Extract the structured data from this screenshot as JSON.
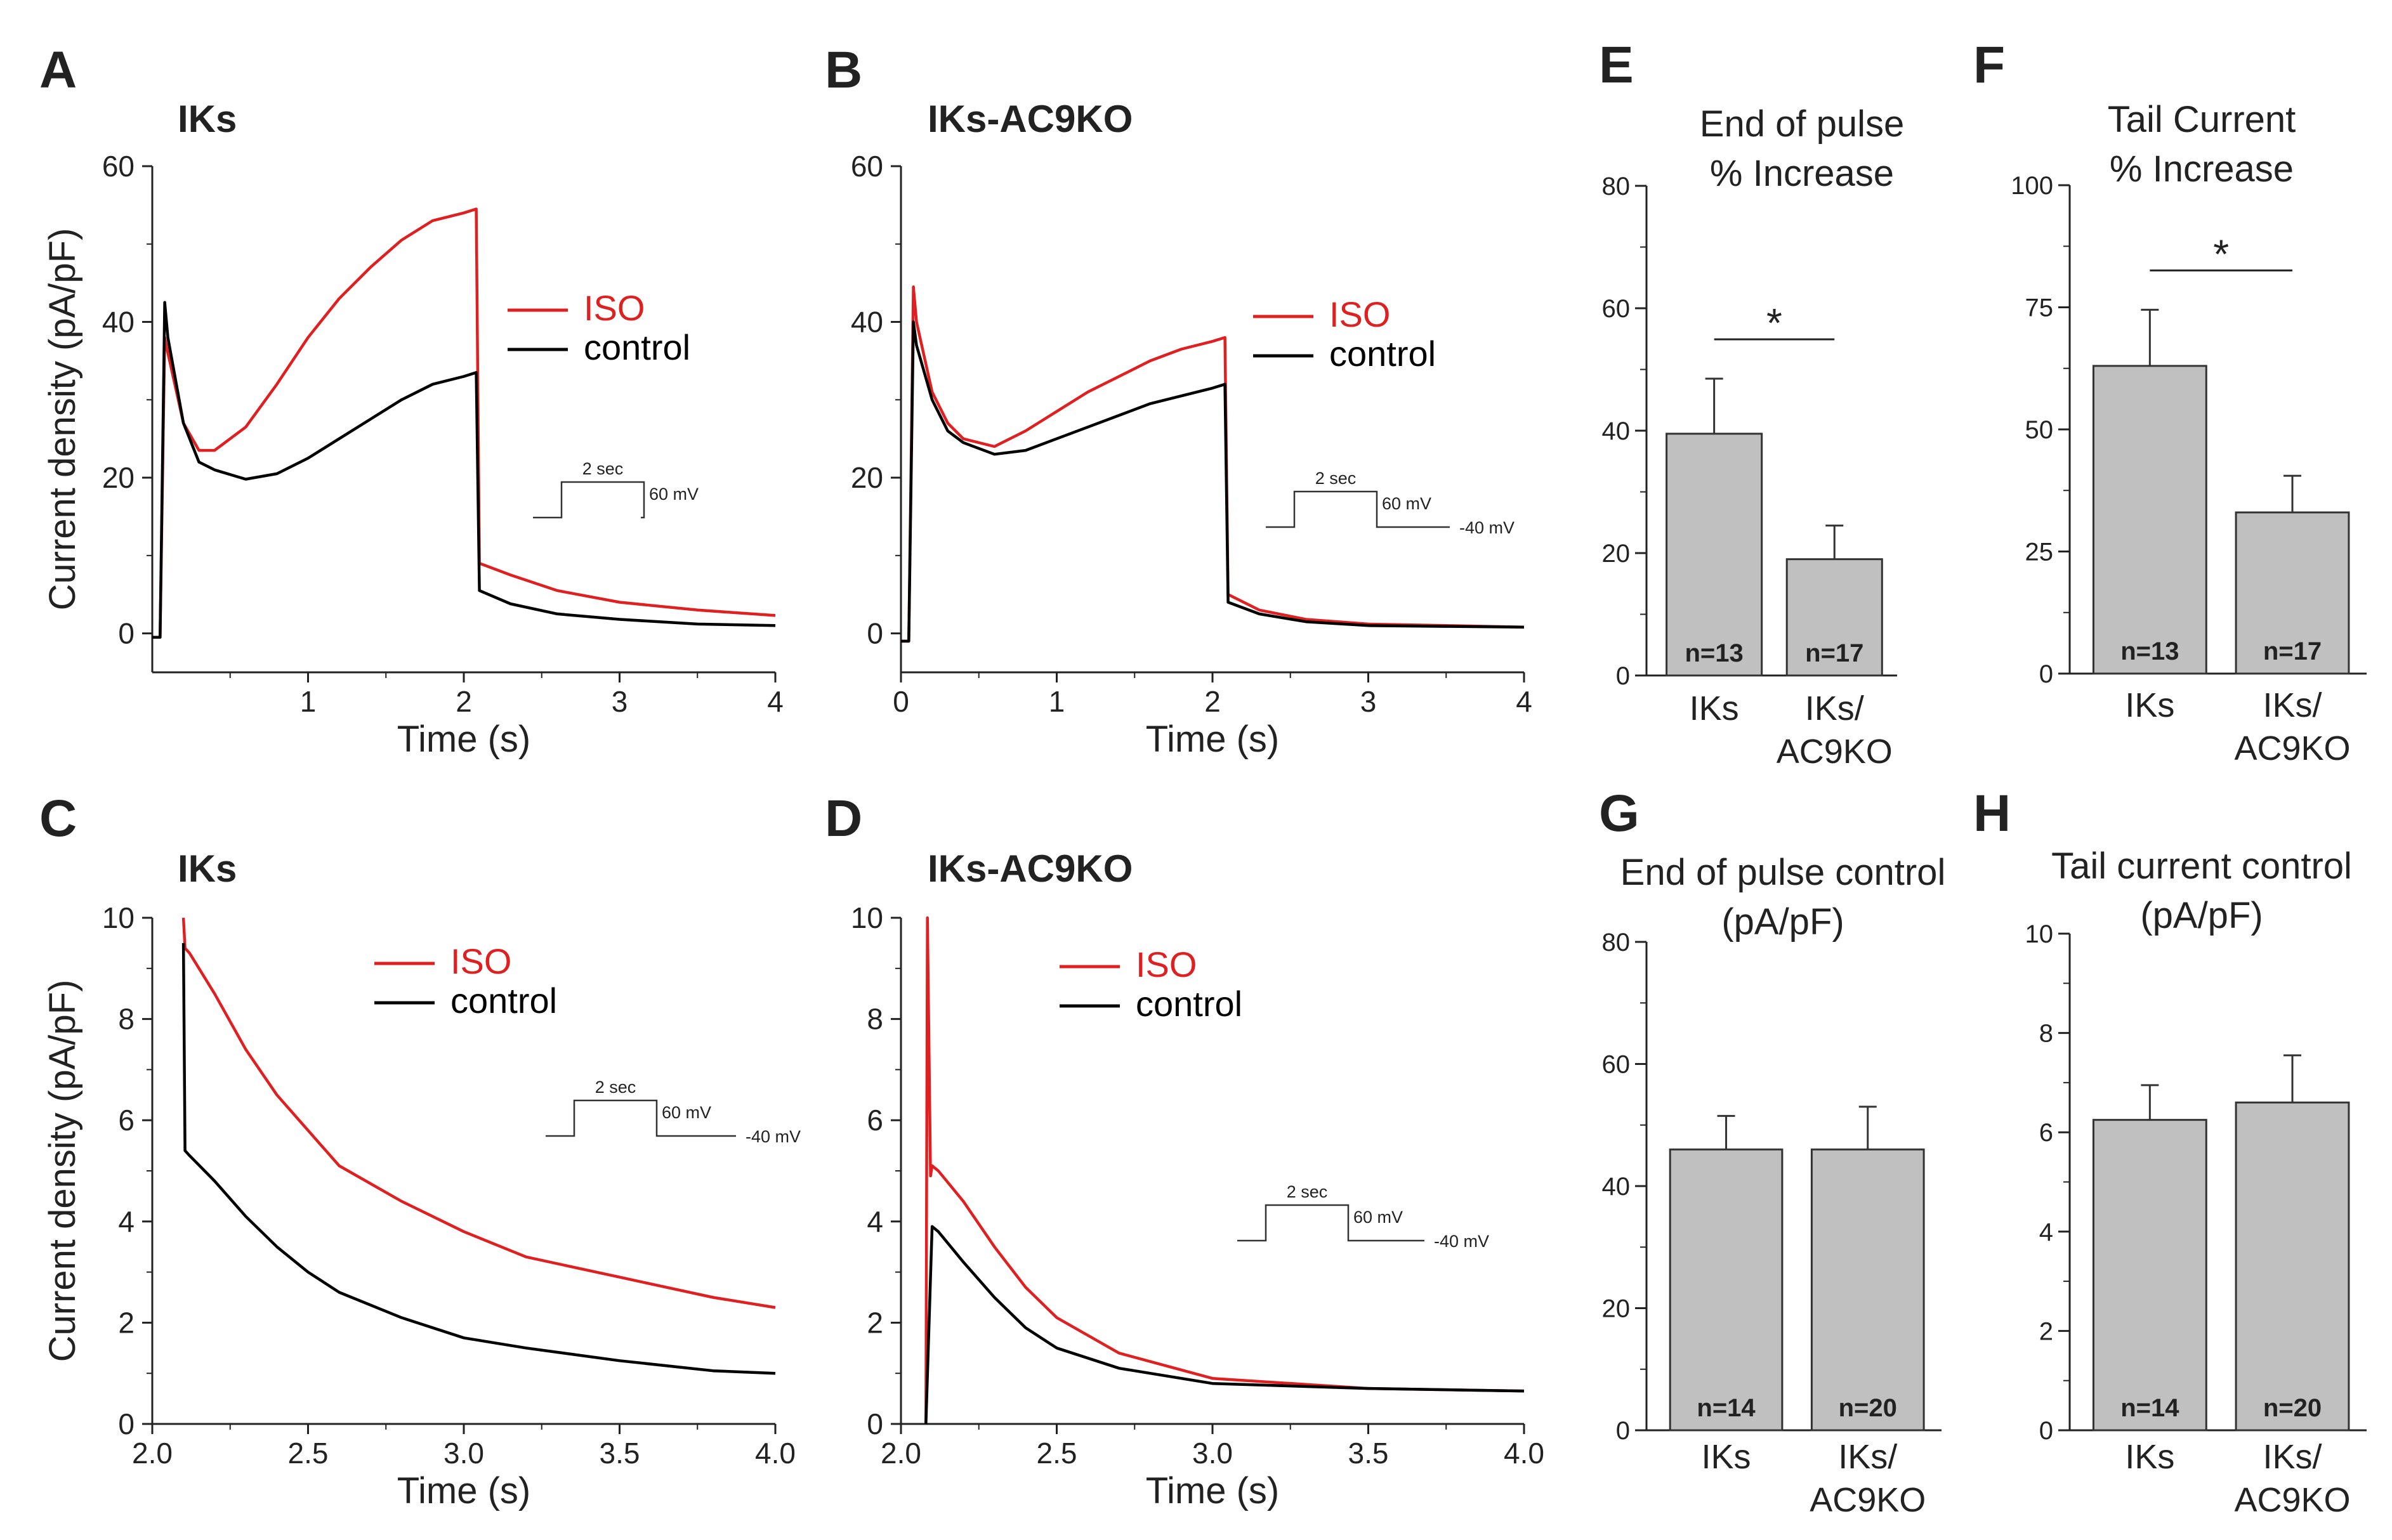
{
  "figure": {
    "panel_labels": [
      "A",
      "B",
      "C",
      "D",
      "E",
      "F",
      "G",
      "H"
    ],
    "colors": {
      "iso": "#e02020",
      "control": "#000000",
      "bar_fill": "#c0c0c0",
      "bar_edge": "#333333",
      "axis": "#222222"
    }
  },
  "chart_data": [
    {
      "id": "A",
      "type": "line",
      "title": "IKs",
      "xlabel": "Time (s)",
      "ylabel": "Current density (pA/pF)",
      "xlim": [
        0,
        4
      ],
      "ylim": [
        -5,
        60
      ],
      "xticks": [
        "1",
        "2",
        "3",
        "4"
      ],
      "xtick_values": [
        1,
        2,
        3,
        4
      ],
      "yticks": [
        "0",
        "20",
        "40",
        "60"
      ],
      "ytick_values": [
        0,
        20,
        40,
        60
      ],
      "legend": [
        "ISO",
        "control"
      ],
      "protocol": {
        "duration": "2 sec",
        "step": "60 mV",
        "holding": ""
      },
      "series": [
        {
          "name": "ISO",
          "x": [
            0.0,
            0.05,
            0.08,
            0.1,
            0.2,
            0.3,
            0.4,
            0.6,
            0.8,
            1.0,
            1.2,
            1.4,
            1.6,
            1.8,
            2.0,
            2.08,
            2.1,
            2.3,
            2.6,
            3.0,
            3.5,
            4.0
          ],
          "y": [
            -0.5,
            -0.5,
            38,
            36,
            27,
            23.5,
            23.5,
            26.5,
            32,
            38,
            43,
            47,
            50.5,
            53,
            54,
            54.5,
            9,
            7.5,
            5.5,
            4,
            3,
            2.3
          ]
        },
        {
          "name": "control",
          "x": [
            0.0,
            0.05,
            0.08,
            0.1,
            0.2,
            0.3,
            0.4,
            0.6,
            0.8,
            1.0,
            1.2,
            1.4,
            1.6,
            1.8,
            2.0,
            2.08,
            2.1,
            2.3,
            2.6,
            3.0,
            3.5,
            4.0
          ],
          "y": [
            -0.5,
            -0.5,
            42.5,
            38,
            27,
            22,
            21,
            19.8,
            20.5,
            22.5,
            25,
            27.5,
            30,
            32,
            33,
            33.5,
            5.5,
            3.8,
            2.5,
            1.8,
            1.2,
            1
          ]
        }
      ]
    },
    {
      "id": "B",
      "type": "line",
      "title": "IKs-AC9KO",
      "xlabel": "Time (s)",
      "ylabel": "",
      "xlim": [
        0,
        4
      ],
      "ylim": [
        -5,
        60
      ],
      "xticks": [
        "0",
        "1",
        "2",
        "3",
        "4"
      ],
      "xtick_values": [
        0,
        1,
        2,
        3,
        4
      ],
      "yticks": [
        "0",
        "20",
        "40",
        "60"
      ],
      "ytick_values": [
        0,
        20,
        40,
        60
      ],
      "legend": [
        "ISO",
        "control"
      ],
      "protocol": {
        "duration": "2 sec",
        "step": "60 mV",
        "holding": "-40 mV"
      },
      "series": [
        {
          "name": "ISO",
          "x": [
            0.0,
            0.05,
            0.08,
            0.1,
            0.2,
            0.3,
            0.4,
            0.6,
            0.8,
            1.0,
            1.2,
            1.4,
            1.6,
            1.8,
            2.0,
            2.08,
            2.1,
            2.3,
            2.6,
            3.0,
            3.5,
            4.0
          ],
          "y": [
            -1,
            -1,
            44.5,
            40,
            31,
            27,
            25,
            24,
            26,
            28.5,
            31,
            33,
            35,
            36.5,
            37.5,
            38,
            5,
            3,
            1.8,
            1.2,
            1,
            0.8
          ]
        },
        {
          "name": "control",
          "x": [
            0.0,
            0.05,
            0.08,
            0.1,
            0.2,
            0.3,
            0.4,
            0.6,
            0.8,
            1.0,
            1.2,
            1.4,
            1.6,
            1.8,
            2.0,
            2.08,
            2.1,
            2.3,
            2.6,
            3.0,
            3.5,
            4.0
          ],
          "y": [
            -1,
            -1,
            40,
            37,
            30,
            26,
            24.5,
            23,
            23.5,
            25,
            26.5,
            28,
            29.5,
            30.5,
            31.5,
            32,
            4,
            2.5,
            1.5,
            1,
            0.9,
            0.8
          ]
        }
      ]
    },
    {
      "id": "C",
      "type": "line",
      "title": "IKs",
      "xlabel": "Time (s)",
      "ylabel": "Current density (pA/pF)",
      "xlim": [
        2.0,
        4.0
      ],
      "ylim": [
        0,
        10
      ],
      "xticks": [
        "2.0",
        "2.5",
        "3.0",
        "3.5",
        "4.0"
      ],
      "xtick_values": [
        2.0,
        2.5,
        3.0,
        3.5,
        4.0
      ],
      "yticks": [
        "0",
        "2",
        "4",
        "6",
        "8",
        "10"
      ],
      "ytick_values": [
        0,
        2,
        4,
        6,
        8,
        10
      ],
      "legend": [
        "ISO",
        "control"
      ],
      "protocol": {
        "duration": "2 sec",
        "step": "60 mV",
        "holding": "-40 mV"
      },
      "series": [
        {
          "name": "ISO",
          "x": [
            2.1,
            2.105,
            2.12,
            2.2,
            2.3,
            2.4,
            2.5,
            2.6,
            2.8,
            3.0,
            3.2,
            3.5,
            3.8,
            4.0
          ],
          "y": [
            10,
            9.4,
            9.3,
            8.5,
            7.4,
            6.5,
            5.8,
            5.1,
            4.4,
            3.8,
            3.3,
            2.9,
            2.5,
            2.3
          ]
        },
        {
          "name": "control",
          "x": [
            2.1,
            2.105,
            2.12,
            2.2,
            2.3,
            2.4,
            2.5,
            2.6,
            2.8,
            3.0,
            3.2,
            3.5,
            3.8,
            4.0
          ],
          "y": [
            9.5,
            5.4,
            5.3,
            4.8,
            4.1,
            3.5,
            3.0,
            2.6,
            2.1,
            1.7,
            1.5,
            1.25,
            1.05,
            1.0
          ]
        }
      ]
    },
    {
      "id": "D",
      "type": "line",
      "title": "IKs-AC9KO",
      "xlabel": "Time (s)",
      "ylabel": "",
      "xlim": [
        2.0,
        4.0
      ],
      "ylim": [
        0,
        10
      ],
      "xticks": [
        "2.0",
        "2.5",
        "3.0",
        "3.5",
        "4.0"
      ],
      "xtick_values": [
        2.0,
        2.5,
        3.0,
        3.5,
        4.0
      ],
      "yticks": [
        "0",
        "2",
        "4",
        "6",
        "8",
        "10"
      ],
      "ytick_values": [
        0,
        2,
        4,
        6,
        8,
        10
      ],
      "legend": [
        "ISO",
        "control"
      ],
      "protocol": {
        "duration": "2 sec",
        "step": "60 mV",
        "holding": "-40 mV"
      },
      "series": [
        {
          "name": "ISO",
          "x": [
            2.08,
            2.085,
            2.095,
            2.1,
            2.12,
            2.2,
            2.3,
            2.4,
            2.5,
            2.7,
            3.0,
            3.5,
            4.0
          ],
          "y": [
            0,
            10,
            4.9,
            5.1,
            5.0,
            4.4,
            3.5,
            2.7,
            2.1,
            1.4,
            0.9,
            0.7,
            0.65
          ]
        },
        {
          "name": "control",
          "x": [
            2.08,
            2.1,
            2.12,
            2.2,
            2.3,
            2.4,
            2.5,
            2.7,
            3.0,
            3.5,
            4.0
          ],
          "y": [
            0,
            3.9,
            3.8,
            3.2,
            2.5,
            1.9,
            1.5,
            1.1,
            0.8,
            0.7,
            0.65
          ]
        }
      ]
    },
    {
      "id": "E",
      "type": "bar",
      "title": [
        "End of pulse",
        "% Increase"
      ],
      "ylim": [
        0,
        80
      ],
      "yticks": [
        "0",
        "20",
        "40",
        "60",
        "80"
      ],
      "ytick_values": [
        0,
        20,
        40,
        60,
        80
      ],
      "categories": [
        [
          "IKs"
        ],
        [
          "IKs/",
          "AC9KO"
        ]
      ],
      "values": [
        39.5,
        19
      ],
      "errors": [
        9,
        5.5
      ],
      "n_labels": [
        "n=13",
        "n=17"
      ],
      "significance": "*"
    },
    {
      "id": "F",
      "type": "bar",
      "title": [
        "Tail Current",
        "% Increase"
      ],
      "ylim": [
        0,
        100
      ],
      "yticks": [
        "0",
        "25",
        "50",
        "75",
        "100"
      ],
      "ytick_values": [
        0,
        25,
        50,
        75,
        100
      ],
      "categories": [
        [
          "IKs"
        ],
        [
          "IKs/",
          "AC9KO"
        ]
      ],
      "values": [
        63,
        33
      ],
      "errors": [
        11.5,
        7.5
      ],
      "n_labels": [
        "n=13",
        "n=17"
      ],
      "significance": "*"
    },
    {
      "id": "G",
      "type": "bar",
      "title": [
        "End of pulse control",
        "(pA/pF)"
      ],
      "ylim": [
        0,
        80
      ],
      "yticks": [
        "0",
        "20",
        "40",
        "60",
        "80"
      ],
      "ytick_values": [
        0,
        20,
        40,
        60,
        80
      ],
      "categories": [
        [
          "IKs"
        ],
        [
          "IKs/",
          "AC9KO"
        ]
      ],
      "values": [
        46,
        46
      ],
      "errors": [
        5.5,
        7
      ],
      "n_labels": [
        "n=14",
        "n=20"
      ],
      "significance": ""
    },
    {
      "id": "H",
      "type": "bar",
      "title": [
        "Tail current control",
        "(pA/pF)"
      ],
      "ylim": [
        0,
        10
      ],
      "yticks": [
        "0",
        "2",
        "4",
        "6",
        "8",
        "10"
      ],
      "ytick_values": [
        0,
        2,
        4,
        6,
        8,
        10
      ],
      "categories": [
        [
          "IKs"
        ],
        [
          "IKs/",
          "AC9KO"
        ]
      ],
      "values": [
        6.25,
        6.6
      ],
      "errors": [
        0.7,
        0.95
      ],
      "n_labels": [
        "n=14",
        "n=20"
      ],
      "significance": ""
    }
  ]
}
